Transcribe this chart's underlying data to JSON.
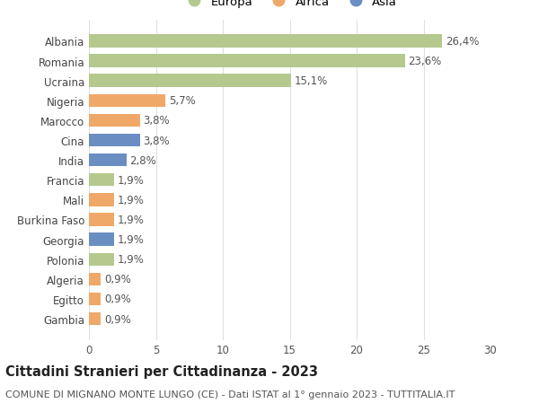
{
  "countries": [
    "Albania",
    "Romania",
    "Ucraina",
    "Nigeria",
    "Marocco",
    "Cina",
    "India",
    "Francia",
    "Mali",
    "Burkina Faso",
    "Georgia",
    "Polonia",
    "Algeria",
    "Egitto",
    "Gambia"
  ],
  "values": [
    26.4,
    23.6,
    15.1,
    5.7,
    3.8,
    3.8,
    2.8,
    1.9,
    1.9,
    1.9,
    1.9,
    1.9,
    0.9,
    0.9,
    0.9
  ],
  "labels": [
    "26,4%",
    "23,6%",
    "15,1%",
    "5,7%",
    "3,8%",
    "3,8%",
    "2,8%",
    "1,9%",
    "1,9%",
    "1,9%",
    "1,9%",
    "1,9%",
    "0,9%",
    "0,9%",
    "0,9%"
  ],
  "continents": [
    "Europa",
    "Europa",
    "Europa",
    "Africa",
    "Africa",
    "Asia",
    "Asia",
    "Europa",
    "Africa",
    "Africa",
    "Asia",
    "Europa",
    "Africa",
    "Africa",
    "Africa"
  ],
  "colors": {
    "Europa": "#b5c98e",
    "Africa": "#f0a868",
    "Asia": "#6b8ec2"
  },
  "xlim": [
    0,
    30
  ],
  "xticks": [
    0,
    5,
    10,
    15,
    20,
    25,
    30
  ],
  "title": "Cittadini Stranieri per Cittadinanza - 2023",
  "subtitle": "COMUNE DI MIGNANO MONTE LUNGO (CE) - Dati ISTAT al 1° gennaio 2023 - TUTTITALIA.IT",
  "background_color": "#ffffff",
  "grid_color": "#e0e0e0",
  "bar_height": 0.65,
  "label_fontsize": 8.5,
  "ytick_fontsize": 8.5,
  "xtick_fontsize": 8.5,
  "title_fontsize": 10.5,
  "subtitle_fontsize": 8.0
}
